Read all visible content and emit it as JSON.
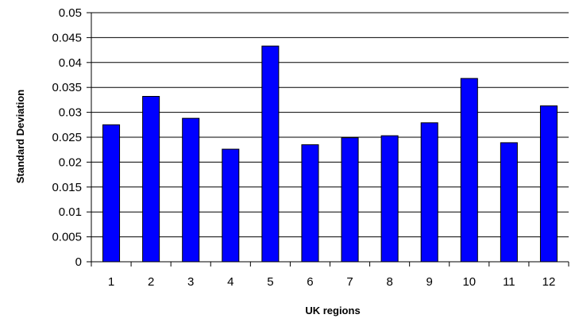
{
  "chart_data": {
    "type": "bar",
    "title": "",
    "xlabel": "UK regions",
    "ylabel": "Standard Deviation",
    "categories": [
      "1",
      "2",
      "3",
      "4",
      "5",
      "6",
      "7",
      "8",
      "9",
      "10",
      "11",
      "12"
    ],
    "values": [
      0.0275,
      0.0332,
      0.0288,
      0.0226,
      0.0433,
      0.0235,
      0.0249,
      0.0253,
      0.0279,
      0.0368,
      0.0239,
      0.0313
    ],
    "ylim": [
      0,
      0.05
    ],
    "yticks": [
      "0",
      "0.005",
      "0.01",
      "0.015",
      "0.02",
      "0.025",
      "0.03",
      "0.035",
      "0.04",
      "0.045",
      "0.05"
    ],
    "grid": true,
    "legend": "none",
    "colors": {
      "bar": "#0000ff",
      "bar_stroke": "#000000",
      "grid": "#000000",
      "axis": "#000000"
    }
  }
}
